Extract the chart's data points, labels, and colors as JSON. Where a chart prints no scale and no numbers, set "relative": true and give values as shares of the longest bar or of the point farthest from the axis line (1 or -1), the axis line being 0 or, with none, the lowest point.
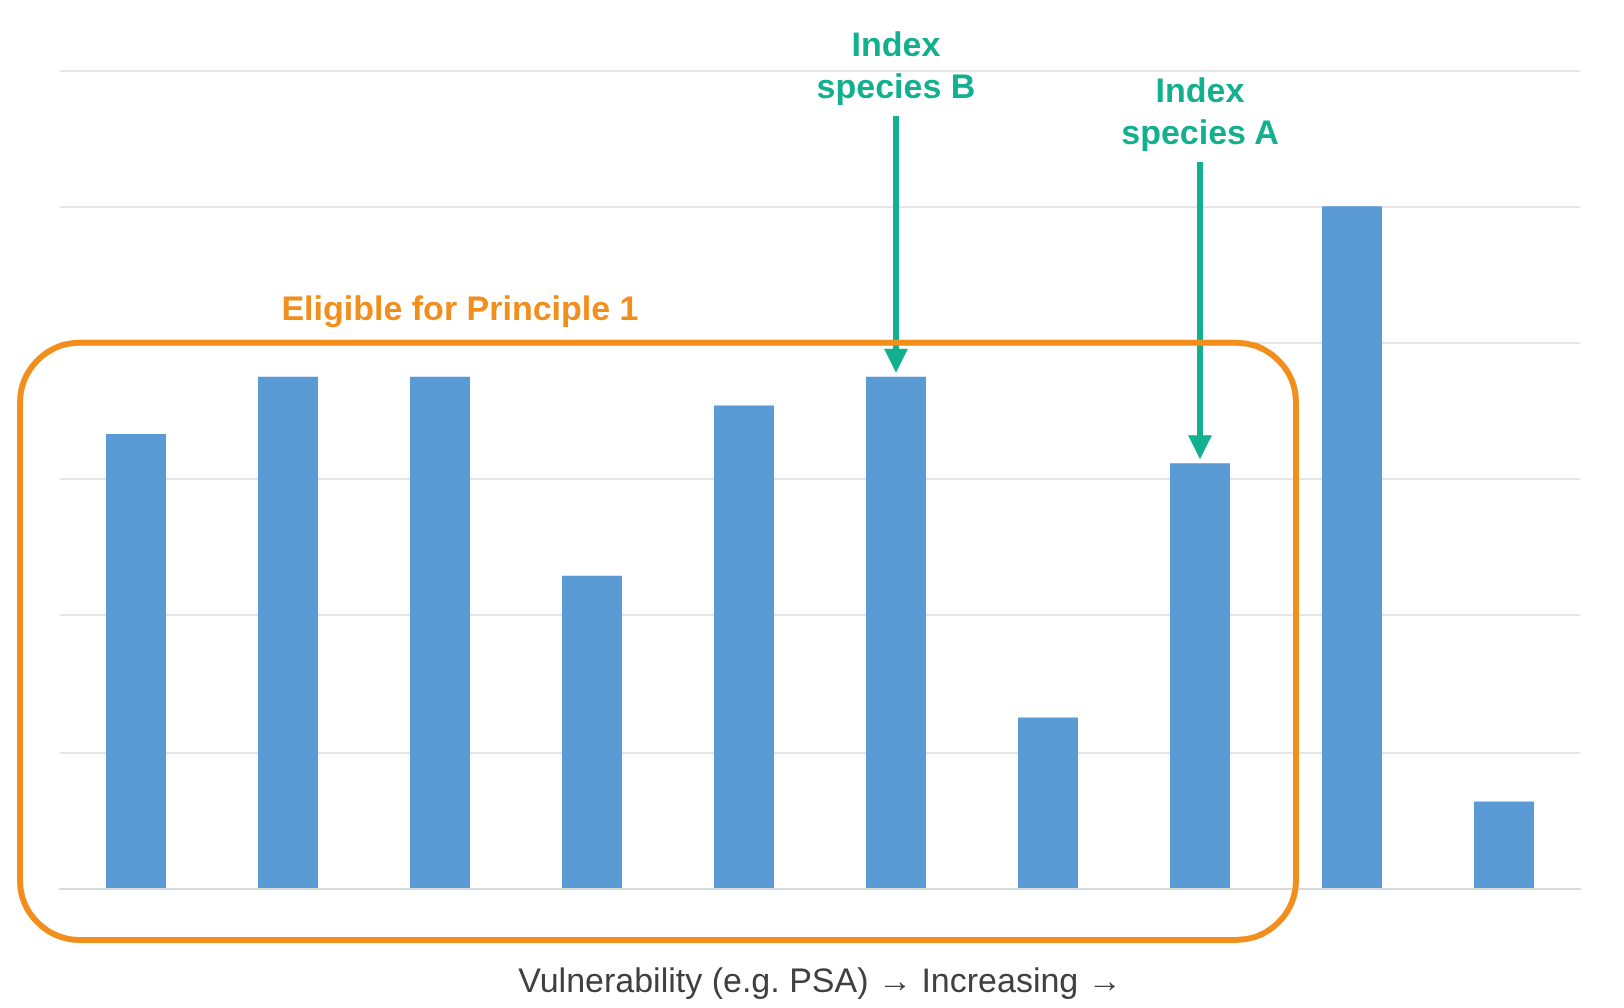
{
  "chart_data": {
    "type": "bar",
    "relative": true,
    "categories": [
      null,
      null,
      null,
      null,
      null,
      null,
      null,
      null,
      null,
      null
    ],
    "values": [
      0.666,
      0.75,
      0.75,
      0.458,
      0.708,
      0.75,
      0.25,
      0.623,
      1,
      0.127
    ],
    "color": "#5b9bd5",
    "xlabel": "Vulnerability (e.g. PSA) → Increasing →",
    "annotations": [
      "Index species B",
      "Index species A",
      "Eligible for Principle 1"
    ],
    "grid": "y"
  }
}
